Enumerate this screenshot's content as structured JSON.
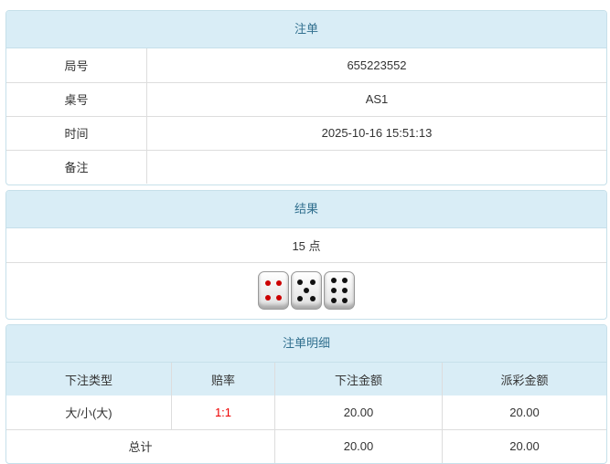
{
  "bet": {
    "title": "注单",
    "rows": [
      {
        "label": "局号",
        "value": "655223552"
      },
      {
        "label": "桌号",
        "value": "AS1"
      },
      {
        "label": "时间",
        "value": "2025-10-16 15:51:13"
      },
      {
        "label": "备注",
        "value": ""
      }
    ]
  },
  "result": {
    "title": "结果",
    "points": "15 点",
    "dice": [
      4,
      5,
      6
    ]
  },
  "detail": {
    "title": "注单明细",
    "headers": [
      "下注类型",
      "赔率",
      "下注金额",
      "派彩金额"
    ],
    "rows": [
      {
        "type": "大/小(大)",
        "odds": "1:1",
        "amount": "20.00",
        "payout": "20.00"
      }
    ],
    "total": {
      "label": "总计",
      "amount": "20.00",
      "payout": "20.00"
    }
  },
  "colors": {
    "header_bg": "#d9edf6",
    "header_text": "#31708f",
    "odds": "#ee0000"
  }
}
